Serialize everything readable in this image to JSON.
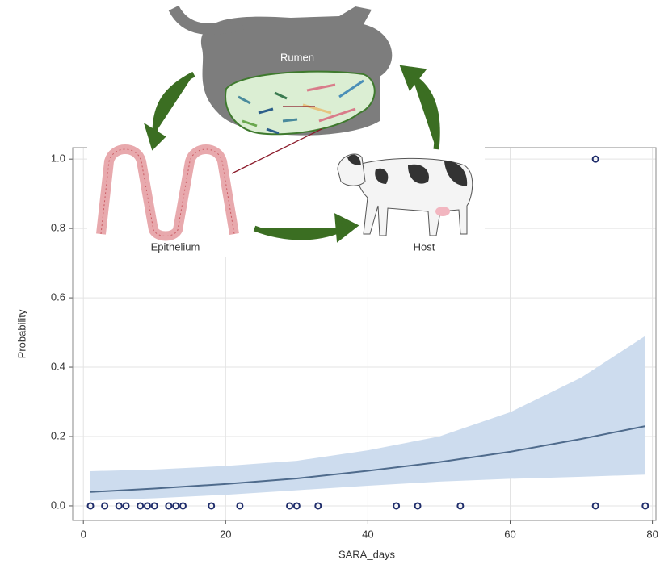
{
  "chart_data": {
    "type": "scatter",
    "x_label": "SARA_days",
    "y_label": "Probability",
    "xlim": [
      -1.5,
      80.5
    ],
    "ylim": [
      -0.042,
      1.033
    ],
    "xticks": [
      0,
      20,
      40,
      60,
      80
    ],
    "yticks": [
      {
        "value": 0,
        "label": "0.0"
      },
      {
        "value": 0.2,
        "label": "0.2"
      },
      {
        "value": 0.4,
        "label": "0.4"
      },
      {
        "value": 0.6,
        "label": "0.6"
      },
      {
        "value": 0.8,
        "label": "0.8"
      },
      {
        "value": 1,
        "label": "1.0"
      }
    ],
    "grid": true,
    "points": {
      "color": "#1f2d6b",
      "x": [
        1,
        3,
        5,
        6,
        8,
        9,
        10,
        12,
        13,
        14,
        18,
        22,
        29,
        30,
        33,
        44,
        47,
        53,
        72,
        79,
        72
      ],
      "y": [
        0,
        0,
        0,
        0,
        0,
        0,
        0,
        0,
        0,
        0,
        0,
        0,
        0,
        0,
        0,
        0,
        0,
        0,
        0,
        0,
        1
      ]
    },
    "fit": {
      "color": "#4f6b8c",
      "band_color": "#cddcee",
      "x": [
        1,
        10,
        20,
        30,
        40,
        50,
        60,
        70,
        79
      ],
      "values": [
        0.04,
        0.05,
        0.063,
        0.079,
        0.101,
        0.126,
        0.156,
        0.193,
        0.23
      ],
      "lower": [
        0.015,
        0.022,
        0.032,
        0.045,
        0.058,
        0.07,
        0.078,
        0.084,
        0.09
      ],
      "upper": [
        0.1,
        0.105,
        0.115,
        0.13,
        0.16,
        0.2,
        0.27,
        0.37,
        0.49
      ]
    }
  },
  "diagram": {
    "labels": [
      "Rumen",
      "Epithelium",
      "Host"
    ]
  }
}
